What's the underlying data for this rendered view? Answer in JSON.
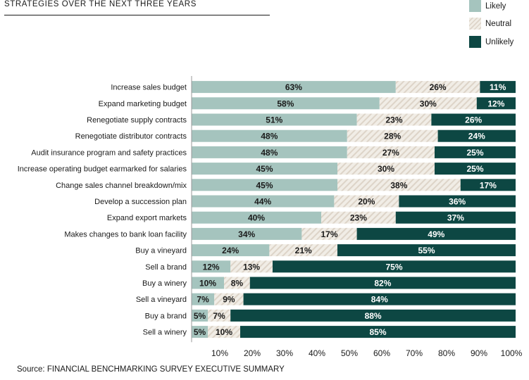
{
  "title": "STRATEGIES OVER THE NEXT THREE YEARS",
  "source": "Source: FINANCIAL BENCHMARKING SURVEY EXECUTIVE SUMMARY",
  "colors": {
    "likely": "#a5c4be",
    "neutral_bg": "#f1ede6",
    "neutral_stripe": "#ddd4c8",
    "unlikely": "#0d4743"
  },
  "chart_data": {
    "type": "bar",
    "orientation": "horizontal-stacked-100",
    "title": "STRATEGIES OVER THE NEXT THREE YEARS",
    "xlim": [
      0,
      100
    ],
    "x_ticks": [
      "10%",
      "20%",
      "30%",
      "40%",
      "50%",
      "60%",
      "70%",
      "80%",
      "90%",
      "100%"
    ],
    "legend_position": "top-right",
    "categories": [
      "Increase sales budget",
      "Expand marketing  budget",
      "Renegotiate supply contracts",
      "Renegotiate distributor contracts",
      "Audit insurance program and safety practices",
      "Increase operating budget earmarked for salaries",
      "Change sales channel breakdown/mix",
      "Develop a succession plan",
      "Expand export markets",
      "Makes changes to bank loan facility",
      "Buy a vineyard",
      "Sell a brand",
      "Buy a winery",
      "Sell a vineyard",
      "Buy a brand",
      "Sell a winery"
    ],
    "series": [
      {
        "name": "Likely",
        "values": [
          63,
          58,
          51,
          48,
          48,
          45,
          45,
          44,
          40,
          34,
          24,
          12,
          10,
          7,
          5,
          5
        ]
      },
      {
        "name": "Neutral",
        "values": [
          26,
          30,
          23,
          28,
          27,
          30,
          38,
          20,
          23,
          17,
          21,
          13,
          8,
          9,
          7,
          10
        ]
      },
      {
        "name": "Unlikely",
        "values": [
          11,
          12,
          26,
          24,
          25,
          25,
          17,
          36,
          37,
          49,
          55,
          75,
          82,
          84,
          88,
          85
        ]
      }
    ]
  }
}
